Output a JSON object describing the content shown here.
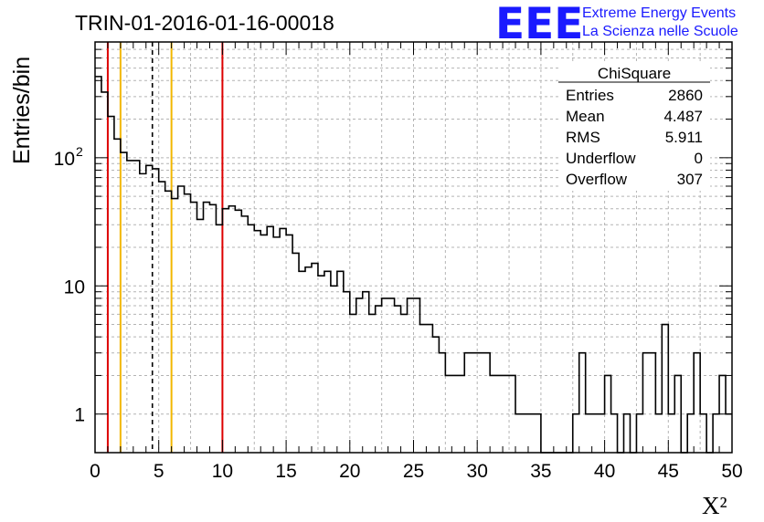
{
  "header": {
    "title": "TRIN-01-2016-01-16-00018",
    "logo_text": "EEE",
    "logo_line1": "Extreme Energy Events",
    "logo_line2": "La Scienza nelle Scuole",
    "logo_color": "#1a1aff"
  },
  "stats": {
    "name": "ChiSquare",
    "rows": [
      {
        "label": "Entries",
        "value": "2860"
      },
      {
        "label": "Mean",
        "value": "4.487"
      },
      {
        "label": "RMS",
        "value": "5.911"
      },
      {
        "label": "Underflow",
        "value": "0"
      },
      {
        "label": "Overflow",
        "value": "307"
      }
    ]
  },
  "chart_data": {
    "type": "histogram",
    "title": "TRIN-01-2016-01-16-00018",
    "xlabel": "X²",
    "ylabel": "Entries/bin",
    "xlim": [
      0,
      50
    ],
    "ylim": [
      0.5,
      800
    ],
    "y_scale": "log",
    "grid": true,
    "bin_width": 0.5,
    "xticks": [
      "0",
      "5",
      "10",
      "15",
      "20",
      "25",
      "30",
      "35",
      "40",
      "45",
      "50"
    ],
    "yticks": [
      {
        "value": 1,
        "label": "1"
      },
      {
        "value": 10,
        "label": "10"
      },
      {
        "value": 100,
        "label": "10",
        "exp": "2"
      }
    ],
    "values": [
      430,
      325,
      210,
      140,
      110,
      95,
      95,
      75,
      87,
      82,
      65,
      55,
      48,
      60,
      52,
      45,
      33,
      45,
      43,
      30,
      40,
      42,
      39,
      35,
      30,
      27,
      25,
      29,
      24,
      28,
      25,
      18,
      13,
      14,
      15,
      12,
      13,
      10,
      13,
      9,
      6,
      8,
      9,
      6,
      7,
      8,
      8,
      7,
      6,
      8,
      8,
      5,
      5,
      4,
      3,
      2,
      2,
      2,
      3,
      3,
      3,
      3,
      2,
      2,
      2,
      2,
      1,
      1,
      1,
      1,
      0,
      0,
      0,
      0,
      0,
      1,
      3,
      1,
      1,
      1,
      2,
      1,
      0,
      1,
      0,
      1,
      3,
      3,
      1,
      5,
      1,
      2,
      0,
      1,
      3,
      1,
      0,
      1,
      2,
      1
    ],
    "markers": [
      {
        "x": 1.0,
        "color": "#dd0000",
        "style": "solid"
      },
      {
        "x": 2.0,
        "color": "#f2b700",
        "style": "solid"
      },
      {
        "x": 4.5,
        "color": "#000000",
        "style": "dashed"
      },
      {
        "x": 6.0,
        "color": "#f2b700",
        "style": "solid"
      },
      {
        "x": 10.0,
        "color": "#dd0000",
        "style": "solid"
      }
    ]
  }
}
